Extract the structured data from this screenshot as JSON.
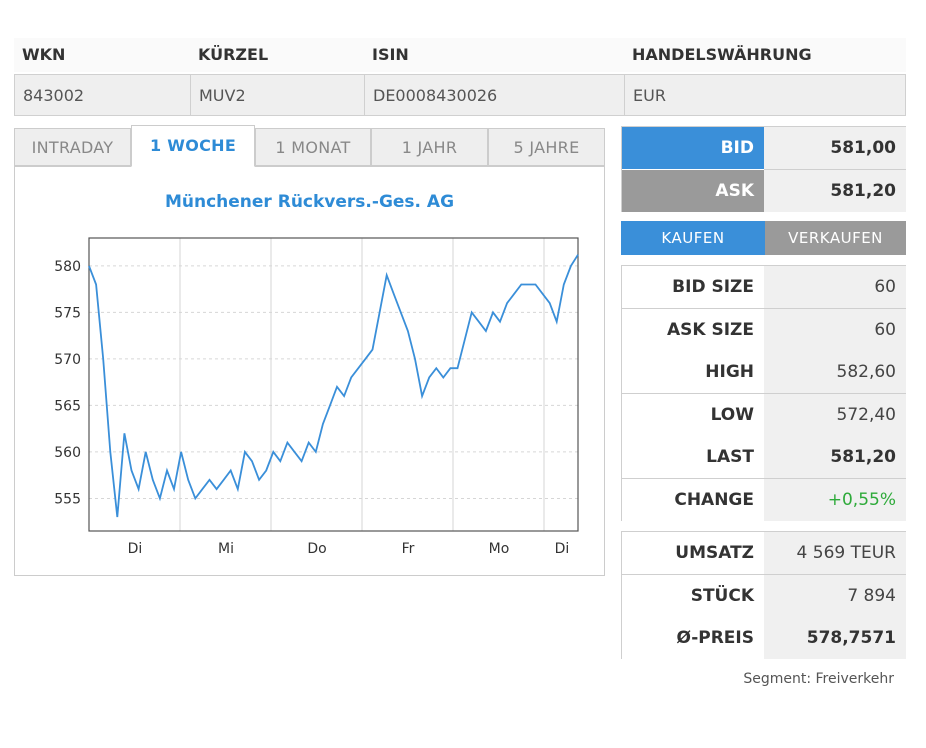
{
  "header": {
    "labels": [
      "WKN",
      "KÜRZEL",
      "ISIN",
      "HANDELSWÄHRUNG"
    ],
    "values": [
      "843002",
      "MUV2",
      "DE0008430026",
      "EUR"
    ]
  },
  "tabs": [
    "INTRADAY",
    "1 WOCHE",
    "1 MONAT",
    "1 JAHR",
    "5 JAHRE"
  ],
  "chart_data": {
    "type": "line",
    "title": "Münchener Rückvers.-Ges. AG",
    "xlabel": "",
    "ylabel": "",
    "x_ticks": [
      "Di",
      "Mi",
      "Do",
      "Fr",
      "Mo",
      "Di"
    ],
    "y_ticks": [
      555,
      560,
      565,
      570,
      575,
      580
    ],
    "ylim": [
      551.5,
      583
    ],
    "series": [
      {
        "name": "MUV2",
        "values": [
          580,
          578,
          570,
          560,
          553,
          562,
          558,
          556,
          560,
          557,
          555,
          558,
          556,
          560,
          557,
          555,
          556,
          557,
          556,
          557,
          558,
          556,
          560,
          559,
          557,
          558,
          560,
          559,
          561,
          560,
          559,
          561,
          560,
          563,
          565,
          567,
          566,
          568,
          569,
          570,
          571,
          575,
          579,
          577,
          575,
          573,
          570,
          566,
          568,
          569,
          568,
          569,
          569,
          572,
          575,
          574,
          573,
          575,
          574,
          576,
          577,
          578,
          578,
          578,
          577,
          576,
          574,
          578,
          580,
          581.2
        ]
      }
    ],
    "color": "#3a8fd9"
  },
  "quote": {
    "bid_label": "BID",
    "bid_value": "581,00",
    "ask_label": "ASK",
    "ask_value": "581,20"
  },
  "buttons": {
    "buy": "KAUFEN",
    "sell": "VERKAUFEN"
  },
  "stats": [
    {
      "label": "BID SIZE",
      "value": "60"
    },
    {
      "label": "ASK SIZE",
      "value": "60"
    },
    {
      "label": "HIGH",
      "value": "582,60"
    },
    {
      "label": "LOW",
      "value": "572,40"
    },
    {
      "label": "LAST",
      "value": "581,20"
    },
    {
      "label": "CHANGE",
      "value": "+0,55%"
    }
  ],
  "volume": [
    {
      "label": "UMSATZ",
      "value": "4 569 TEUR"
    },
    {
      "label": "STÜCK",
      "value": "7 894"
    },
    {
      "label": "Ø-PREIS",
      "value": "578,7571"
    }
  ],
  "segment": "Segment: Freiverkehr",
  "colors": {
    "accent": "#3a8fd9",
    "positive": "#2eaa3a",
    "gray": "#9a9a9a"
  }
}
